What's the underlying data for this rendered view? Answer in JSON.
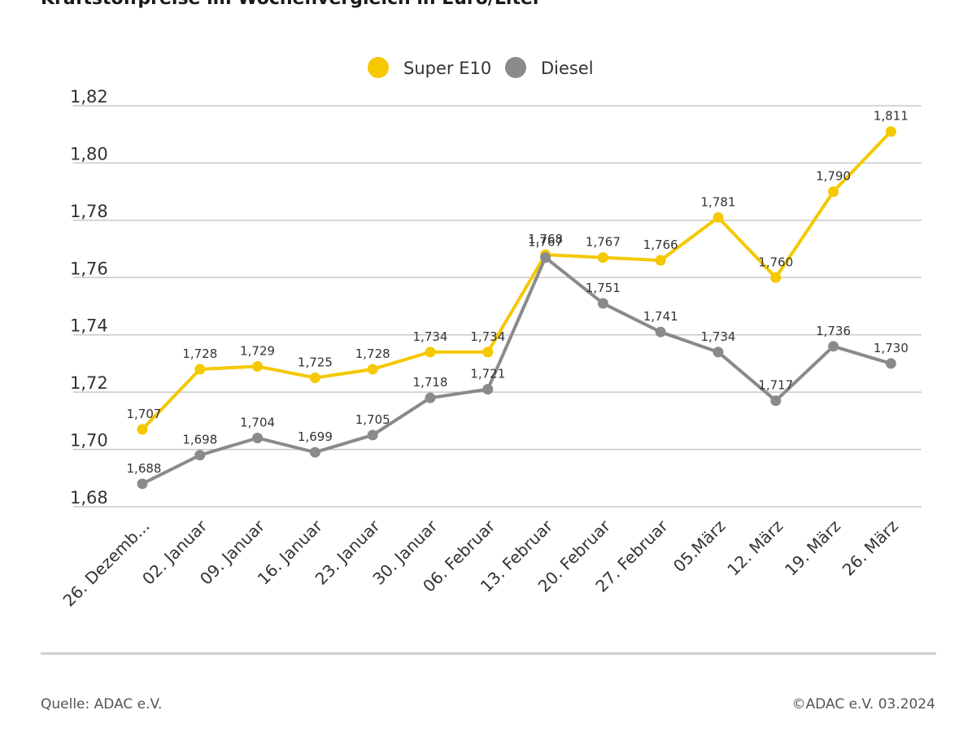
{
  "title": "Kraftstoffpreise im Wochenvergleich in Euro/Liter",
  "source": "Quelle: ADAC e.V.",
  "copyright": "©ADAC e.V. 03.2024",
  "colors": {
    "super_e10": "#f5c800",
    "diesel": "#8a8a8a",
    "grid": "#c8c8c8"
  },
  "chart_data": {
    "type": "line",
    "title": "Kraftstoffpreise im Wochenvergleich in Euro/Liter",
    "xlabel": "",
    "ylabel": "",
    "ylim": [
      1.68,
      1.82
    ],
    "yticks": [
      "1,68",
      "1,70",
      "1,72",
      "1,74",
      "1,76",
      "1,78",
      "1,80",
      "1,82"
    ],
    "ytick_values": [
      1.68,
      1.7,
      1.72,
      1.74,
      1.76,
      1.78,
      1.8,
      1.82
    ],
    "grid": true,
    "legend": "top-center",
    "categories": [
      "26. Dezemb...",
      "02. Januar",
      "09. Januar",
      "16. Januar",
      "23. Januar",
      "30. Januar",
      "06. Februar",
      "13. Februar",
      "20. Februar",
      "27. Februar",
      "05.März",
      "12. März",
      "19. März",
      "26. März"
    ],
    "series": [
      {
        "name": "Super E10",
        "values": [
          1.707,
          1.728,
          1.729,
          1.725,
          1.728,
          1.734,
          1.734,
          1.768,
          1.767,
          1.766,
          1.781,
          1.76,
          1.79,
          1.811
        ],
        "labels": [
          "1,707",
          "1,728",
          "1,729",
          "1,725",
          "1,728",
          "1,734",
          "1,734",
          "1,768",
          "1,767",
          "1,766",
          "1,781",
          "1,760",
          "1,790",
          "1,811"
        ]
      },
      {
        "name": "Diesel",
        "values": [
          1.688,
          1.698,
          1.704,
          1.699,
          1.705,
          1.718,
          1.721,
          1.767,
          1.751,
          1.741,
          1.734,
          1.717,
          1.736,
          1.73
        ],
        "labels": [
          "1,688",
          "1,698",
          "1,704",
          "1,699",
          "1,705",
          "1,718",
          "1,721",
          "1,767",
          "1,751",
          "1,741",
          "1,734",
          "1,717",
          "1,736",
          "1,730"
        ]
      }
    ]
  }
}
